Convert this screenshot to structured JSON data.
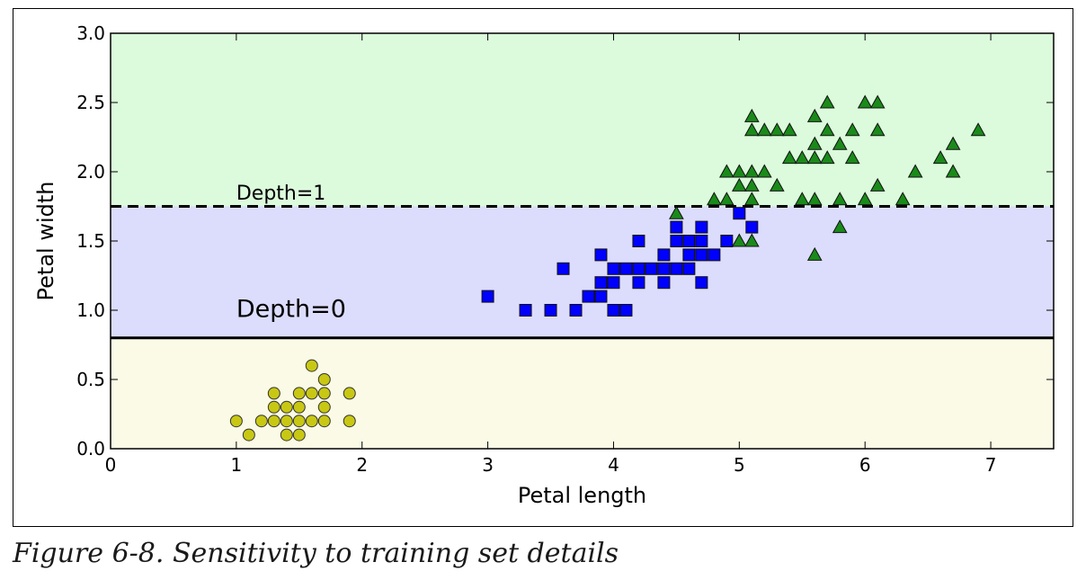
{
  "caption": "Figure 6-8. Sensitivity to training set details",
  "chart_data": {
    "type": "scatter",
    "xlabel": "Petal length",
    "ylabel": "Petal width",
    "xlim": [
      0,
      7.5
    ],
    "ylim": [
      0,
      3.0
    ],
    "x_ticks": [
      0,
      1,
      2,
      3,
      4,
      5,
      6,
      7
    ],
    "y_ticks": [
      0.0,
      0.5,
      1.0,
      1.5,
      2.0,
      2.5,
      3.0
    ],
    "x_tick_labels": [
      "0",
      "1",
      "2",
      "3",
      "4",
      "5",
      "6",
      "7"
    ],
    "y_tick_labels": [
      "0.0",
      "0.5",
      "1.0",
      "1.5",
      "2.0",
      "2.5",
      "3.0"
    ],
    "regions": [
      {
        "y_from": 0.0,
        "y_to": 0.8,
        "color": "#fbfae6"
      },
      {
        "y_from": 0.8,
        "y_to": 1.75,
        "color": "#dcdcfc"
      },
      {
        "y_from": 1.75,
        "y_to": 3.0,
        "color": "#dcfadc"
      }
    ],
    "boundaries": [
      {
        "y": 0.8,
        "style": "solid",
        "label": "Depth=0",
        "label_x": 1.0,
        "label_y": 0.95
      },
      {
        "y": 1.75,
        "style": "dashed",
        "label": "Depth=1",
        "label_x": 1.0,
        "label_y": 1.8
      }
    ],
    "series": [
      {
        "marker": "circle",
        "color": "#c8c814",
        "points": [
          [
            1.0,
            0.2
          ],
          [
            1.1,
            0.1
          ],
          [
            1.2,
            0.2
          ],
          [
            1.3,
            0.2
          ],
          [
            1.3,
            0.3
          ],
          [
            1.3,
            0.4
          ],
          [
            1.4,
            0.1
          ],
          [
            1.4,
            0.2
          ],
          [
            1.4,
            0.3
          ],
          [
            1.5,
            0.1
          ],
          [
            1.5,
            0.2
          ],
          [
            1.5,
            0.3
          ],
          [
            1.5,
            0.4
          ],
          [
            1.6,
            0.2
          ],
          [
            1.6,
            0.4
          ],
          [
            1.6,
            0.6
          ],
          [
            1.7,
            0.2
          ],
          [
            1.7,
            0.3
          ],
          [
            1.7,
            0.4
          ],
          [
            1.7,
            0.5
          ],
          [
            1.9,
            0.2
          ],
          [
            1.9,
            0.4
          ]
        ]
      },
      {
        "marker": "square",
        "color": "#0000ff",
        "points": [
          [
            3.0,
            1.1
          ],
          [
            3.3,
            1.0
          ],
          [
            3.5,
            1.0
          ],
          [
            3.6,
            1.3
          ],
          [
            3.7,
            1.0
          ],
          [
            3.8,
            1.1
          ],
          [
            3.9,
            1.1
          ],
          [
            3.9,
            1.2
          ],
          [
            3.9,
            1.4
          ],
          [
            4.0,
            1.0
          ],
          [
            4.0,
            1.2
          ],
          [
            4.0,
            1.3
          ],
          [
            4.1,
            1.0
          ],
          [
            4.1,
            1.3
          ],
          [
            4.2,
            1.2
          ],
          [
            4.2,
            1.3
          ],
          [
            4.2,
            1.5
          ],
          [
            4.3,
            1.3
          ],
          [
            4.4,
            1.2
          ],
          [
            4.4,
            1.3
          ],
          [
            4.4,
            1.4
          ],
          [
            4.5,
            1.3
          ],
          [
            4.5,
            1.5
          ],
          [
            4.5,
            1.6
          ],
          [
            4.6,
            1.3
          ],
          [
            4.6,
            1.4
          ],
          [
            4.6,
            1.5
          ],
          [
            4.7,
            1.2
          ],
          [
            4.7,
            1.4
          ],
          [
            4.7,
            1.5
          ],
          [
            4.7,
            1.6
          ],
          [
            4.8,
            1.4
          ],
          [
            4.9,
            1.5
          ],
          [
            5.0,
            1.7
          ],
          [
            5.1,
            1.6
          ]
        ]
      },
      {
        "marker": "triangle",
        "color": "#1a8a1a",
        "points": [
          [
            4.5,
            1.7
          ],
          [
            4.8,
            1.8
          ],
          [
            4.9,
            1.8
          ],
          [
            4.9,
            2.0
          ],
          [
            5.0,
            1.5
          ],
          [
            5.0,
            2.0
          ],
          [
            5.0,
            1.9
          ],
          [
            5.1,
            1.5
          ],
          [
            5.1,
            1.8
          ],
          [
            5.1,
            1.9
          ],
          [
            5.1,
            2.0
          ],
          [
            5.1,
            2.3
          ],
          [
            5.1,
            2.4
          ],
          [
            5.2,
            2.0
          ],
          [
            5.2,
            2.3
          ],
          [
            5.3,
            1.9
          ],
          [
            5.3,
            2.3
          ],
          [
            5.4,
            2.1
          ],
          [
            5.4,
            2.3
          ],
          [
            5.5,
            1.8
          ],
          [
            5.5,
            2.1
          ],
          [
            5.6,
            1.4
          ],
          [
            5.6,
            1.8
          ],
          [
            5.6,
            2.1
          ],
          [
            5.6,
            2.2
          ],
          [
            5.6,
            2.4
          ],
          [
            5.7,
            2.1
          ],
          [
            5.7,
            2.3
          ],
          [
            5.7,
            2.5
          ],
          [
            5.8,
            1.6
          ],
          [
            5.8,
            1.8
          ],
          [
            5.8,
            2.2
          ],
          [
            5.9,
            2.1
          ],
          [
            5.9,
            2.3
          ],
          [
            6.0,
            1.8
          ],
          [
            6.0,
            2.5
          ],
          [
            6.1,
            1.9
          ],
          [
            6.1,
            2.3
          ],
          [
            6.1,
            2.5
          ],
          [
            6.3,
            1.8
          ],
          [
            6.4,
            2.0
          ],
          [
            6.6,
            2.1
          ],
          [
            6.7,
            2.0
          ],
          [
            6.7,
            2.2
          ],
          [
            6.9,
            2.3
          ]
        ]
      }
    ]
  }
}
